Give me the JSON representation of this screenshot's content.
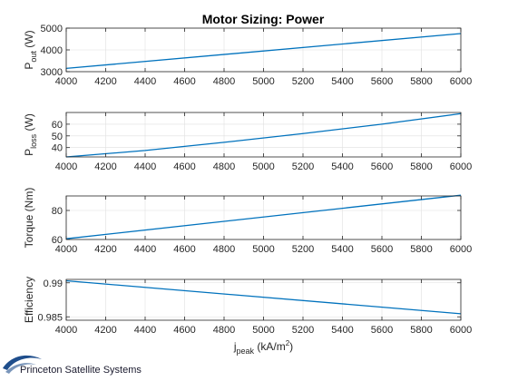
{
  "chart_data": [
    {
      "type": "line",
      "title": "Motor Sizing: Power",
      "ylabel": "P",
      "ylabel_sub": "out",
      "ylabel_unit": " (W)",
      "xlim": [
        4000,
        6000
      ],
      "ylim": [
        3000,
        5000
      ],
      "x_ticks": [
        4000,
        4200,
        4400,
        4600,
        4800,
        5000,
        5200,
        5400,
        5600,
        5800,
        6000
      ],
      "y_ticks": [
        3000,
        4000,
        5000
      ],
      "grid": true,
      "series": [
        {
          "x": [
            4000,
            6000
          ],
          "values": [
            3150,
            4750
          ],
          "color": "#0072BD"
        }
      ]
    },
    {
      "type": "line",
      "ylabel": "P",
      "ylabel_sub": "loss",
      "ylabel_unit": " (W)",
      "xlim": [
        4000,
        6000
      ],
      "ylim": [
        32,
        70
      ],
      "x_ticks": [
        4000,
        4200,
        4400,
        4600,
        4800,
        5000,
        5200,
        5400,
        5600,
        5800,
        6000
      ],
      "y_ticks": [
        40,
        50,
        60
      ],
      "grid": true,
      "series": [
        {
          "x": [
            4000,
            4400,
            4800,
            5200,
            5600,
            6000
          ],
          "values": [
            32,
            37.5,
            44.5,
            52,
            60,
            69
          ],
          "color": "#0072BD"
        }
      ]
    },
    {
      "type": "line",
      "ylabel": "Torque (Nm)",
      "xlim": [
        4000,
        6000
      ],
      "ylim": [
        60,
        90
      ],
      "x_ticks": [
        4000,
        4200,
        4400,
        4600,
        4800,
        5000,
        5200,
        5400,
        5600,
        5800,
        6000
      ],
      "y_ticks": [
        60,
        80
      ],
      "grid": true,
      "series": [
        {
          "x": [
            4000,
            6000
          ],
          "values": [
            60.5,
            90.5
          ],
          "color": "#0072BD"
        }
      ]
    },
    {
      "type": "line",
      "ylabel": "Efficiency",
      "xlabel": "j",
      "xlabel_sub": "peak",
      "xlabel_unit": " (kA/m",
      "xlabel_sup": "2",
      "xlabel_end": ")",
      "xlim": [
        4000,
        6000
      ],
      "ylim": [
        0.9845,
        0.9905
      ],
      "x_ticks": [
        4000,
        4200,
        4400,
        4600,
        4800,
        5000,
        5200,
        5400,
        5600,
        5800,
        6000
      ],
      "y_ticks": [
        0.985,
        0.99
      ],
      "y_tick_labels": [
        "0.985",
        "0.99"
      ],
      "grid": true,
      "series": [
        {
          "x": [
            4000,
            6000
          ],
          "values": [
            0.9903,
            0.98545
          ],
          "color": "#0072BD"
        }
      ]
    }
  ],
  "branding": {
    "text": "Princeton Satellite Systems",
    "logo_icon": "swoosh-logo-icon",
    "logo_color": "#1f4e8c"
  }
}
